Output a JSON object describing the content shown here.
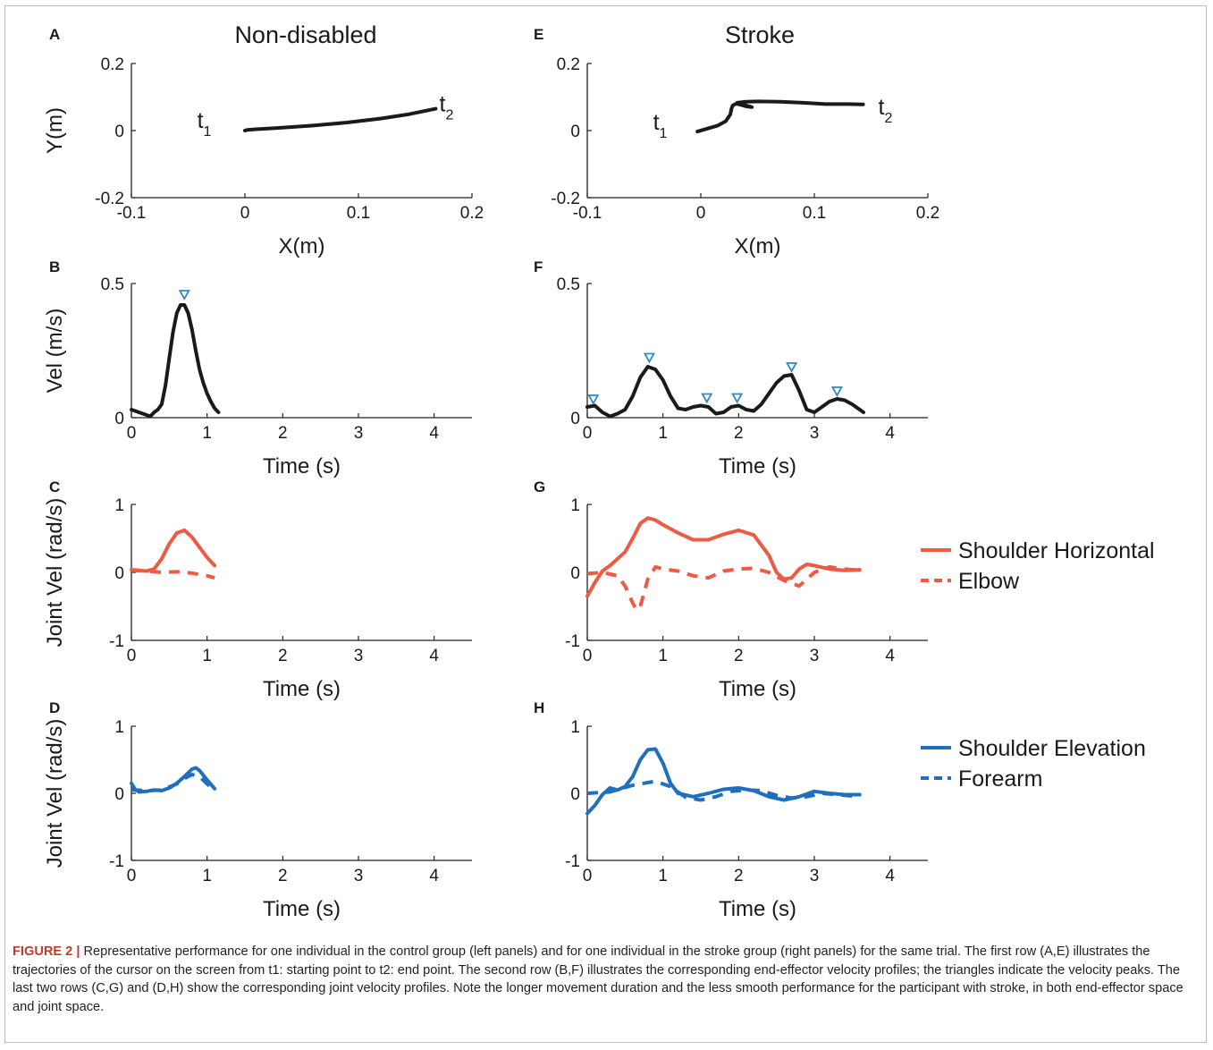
{
  "figure": {
    "column_titles": [
      "Non-disabled",
      "Stroke"
    ],
    "panel_labels": [
      "A",
      "B",
      "C",
      "D",
      "E",
      "F",
      "G",
      "H"
    ],
    "caption": {
      "label": "FIGURE 2 |",
      "text": "Representative performance for one individual in the control group (left panels) and for one individual in the stroke group (right panels) for the same trial. The first row (A,E) illustrates the trajectories of the cursor on the screen from t1: starting point to t2: end point. The second row (B,F) illustrates the corresponding end-effector velocity profiles; the triangles indicate the velocity peaks. The last two rows (C,G) and (D,H) show the corresponding joint velocity profiles. Note the longer movement duration and the less smooth performance for the participant with stroke, in both end-effector space and joint space."
    },
    "colors": {
      "black": "#1a1a1a",
      "red": "#ef5a44",
      "blue": "#1f6fc0",
      "peak": "#2f86c8"
    }
  },
  "chart_data": [
    {
      "panel": "A",
      "type": "line",
      "title": "Non-disabled",
      "xlabel": "X(m)",
      "ylabel": "Y(m)",
      "xlim": [
        -0.1,
        0.2
      ],
      "ylim": [
        -0.2,
        0.2
      ],
      "xticks": [
        -0.1,
        0,
        0.1,
        0.2
      ],
      "xtick_labels": [
        "-0.1",
        "0",
        "0.1",
        "0.2"
      ],
      "yticks": [
        -0.2,
        0,
        0.2
      ],
      "ytick_labels": [
        "-0.2",
        "0",
        "0.2"
      ],
      "annotations": [
        {
          "text": "t1",
          "x": -0.02,
          "y": 0.0
        },
        {
          "text": "t2",
          "x": 0.165,
          "y": 0.09
        }
      ],
      "series": [
        {
          "color": "black",
          "style": "solid",
          "x": [
            0,
            0.002,
            0.01,
            0.03,
            0.06,
            0.09,
            0.12,
            0.145,
            0.168
          ],
          "y": [
            0,
            0.002,
            0.004,
            0.008,
            0.015,
            0.024,
            0.036,
            0.049,
            0.065
          ]
        }
      ]
    },
    {
      "panel": "E",
      "type": "line",
      "title": "Stroke",
      "xlabel": "X(m)",
      "ylabel": "",
      "xlim": [
        -0.1,
        0.2
      ],
      "ylim": [
        -0.2,
        0.2
      ],
      "xticks": [
        -0.1,
        0,
        0.1,
        0.2
      ],
      "xtick_labels": [
        "-0.1",
        "0",
        "0.1",
        "0.2"
      ],
      "yticks": [
        -0.2,
        0,
        0.2
      ],
      "ytick_labels": [
        "-0.2",
        "0",
        "0.2"
      ],
      "annotations": [
        {
          "text": "t1",
          "x": -0.02,
          "y": -0.005
        },
        {
          "text": "t2",
          "x": 0.15,
          "y": 0.08
        }
      ],
      "series": [
        {
          "color": "black",
          "style": "solid",
          "x": [
            -0.003,
            0.005,
            0.015,
            0.022,
            0.026,
            0.027,
            0.028,
            0.031,
            0.035,
            0.04,
            0.045,
            0.032,
            0.04,
            0.05,
            0.07,
            0.09,
            0.11,
            0.13,
            0.143
          ],
          "y": [
            -0.003,
            0.005,
            0.015,
            0.028,
            0.048,
            0.065,
            0.075,
            0.08,
            0.077,
            0.072,
            0.07,
            0.083,
            0.086,
            0.087,
            0.086,
            0.083,
            0.079,
            0.079,
            0.078
          ]
        }
      ]
    },
    {
      "panel": "B",
      "type": "line",
      "title": "",
      "xlabel": "Time (s)",
      "ylabel": "Vel (m/s)",
      "xlim": [
        0,
        4.5
      ],
      "ylim": [
        0,
        0.5
      ],
      "xticks": [
        0,
        1,
        2,
        3,
        4
      ],
      "xtick_labels": [
        "0",
        "1",
        "2",
        "3",
        "4"
      ],
      "yticks": [
        0,
        0.5
      ],
      "ytick_labels": [
        "0",
        "0.5"
      ],
      "peaks": [
        {
          "x": 0.7,
          "y": 0.46
        }
      ],
      "series": [
        {
          "color": "black",
          "style": "solid",
          "x": [
            0,
            0.1,
            0.2,
            0.25,
            0.3,
            0.35,
            0.4,
            0.45,
            0.5,
            0.55,
            0.6,
            0.65,
            0.7,
            0.75,
            0.8,
            0.85,
            0.9,
            0.95,
            1.0,
            1.05,
            1.1,
            1.15
          ],
          "y": [
            0.03,
            0.02,
            0.01,
            0.005,
            0.02,
            0.03,
            0.05,
            0.12,
            0.22,
            0.32,
            0.39,
            0.42,
            0.42,
            0.39,
            0.33,
            0.25,
            0.18,
            0.13,
            0.09,
            0.06,
            0.035,
            0.02
          ]
        }
      ]
    },
    {
      "panel": "F",
      "type": "line",
      "title": "",
      "xlabel": "Time (s)",
      "ylabel": "",
      "xlim": [
        0,
        4.5
      ],
      "ylim": [
        0,
        0.5
      ],
      "xticks": [
        0,
        1,
        2,
        3,
        4
      ],
      "xtick_labels": [
        "0",
        "1",
        "2",
        "3",
        "4"
      ],
      "yticks": [
        0,
        0.5
      ],
      "ytick_labels": [
        "0",
        "0.5"
      ],
      "peaks": [
        {
          "x": 0.08,
          "y": 0.07
        },
        {
          "x": 0.82,
          "y": 0.225
        },
        {
          "x": 1.58,
          "y": 0.075
        },
        {
          "x": 1.98,
          "y": 0.075
        },
        {
          "x": 2.7,
          "y": 0.19
        },
        {
          "x": 3.3,
          "y": 0.1
        }
      ],
      "series": [
        {
          "color": "black",
          "style": "solid",
          "x": [
            0,
            0.1,
            0.2,
            0.3,
            0.4,
            0.5,
            0.6,
            0.7,
            0.8,
            0.9,
            1.0,
            1.1,
            1.2,
            1.3,
            1.4,
            1.5,
            1.6,
            1.7,
            1.8,
            1.9,
            2.0,
            2.1,
            2.2,
            2.3,
            2.4,
            2.5,
            2.6,
            2.7,
            2.8,
            2.9,
            3.0,
            3.1,
            3.2,
            3.3,
            3.4,
            3.5,
            3.6,
            3.65
          ],
          "y": [
            0.04,
            0.045,
            0.02,
            0.005,
            0.015,
            0.03,
            0.08,
            0.15,
            0.19,
            0.18,
            0.14,
            0.08,
            0.035,
            0.03,
            0.04,
            0.045,
            0.04,
            0.015,
            0.02,
            0.04,
            0.045,
            0.03,
            0.025,
            0.05,
            0.09,
            0.13,
            0.155,
            0.16,
            0.1,
            0.03,
            0.02,
            0.04,
            0.06,
            0.07,
            0.065,
            0.05,
            0.03,
            0.02
          ]
        }
      ]
    },
    {
      "panel": "C",
      "type": "line",
      "title": "",
      "xlabel": "Time (s)",
      "ylabel": "Joint Vel (rad/s)",
      "xlim": [
        0,
        4.5
      ],
      "ylim": [
        -1,
        1
      ],
      "xticks": [
        0,
        1,
        2,
        3,
        4
      ],
      "xtick_labels": [
        "0",
        "1",
        "2",
        "3",
        "4"
      ],
      "yticks": [
        -1,
        0,
        1
      ],
      "ytick_labels": [
        "-1",
        "0",
        "1"
      ],
      "series": [
        {
          "name": "Shoulder Horizontal",
          "color": "red",
          "style": "solid",
          "x": [
            0,
            0.1,
            0.2,
            0.3,
            0.4,
            0.5,
            0.6,
            0.7,
            0.8,
            0.9,
            1.0,
            1.1
          ],
          "y": [
            0.04,
            0.03,
            0.02,
            0.05,
            0.2,
            0.42,
            0.58,
            0.62,
            0.52,
            0.37,
            0.22,
            0.1
          ]
        },
        {
          "name": "Elbow",
          "color": "red",
          "style": "dash",
          "x": [
            0,
            0.2,
            0.4,
            0.6,
            0.8,
            1.0,
            1.1
          ],
          "y": [
            0.03,
            0.02,
            0.0,
            0.01,
            -0.01,
            -0.05,
            -0.08
          ]
        }
      ]
    },
    {
      "panel": "G",
      "type": "line",
      "title": "",
      "xlabel": "Time (s)",
      "ylabel": "",
      "xlim": [
        0,
        4.5
      ],
      "ylim": [
        -1,
        1
      ],
      "xticks": [
        0,
        1,
        2,
        3,
        4
      ],
      "xtick_labels": [
        "0",
        "1",
        "2",
        "3",
        "4"
      ],
      "yticks": [
        -1,
        0,
        1
      ],
      "ytick_labels": [
        "-1",
        "0",
        "1"
      ],
      "series": [
        {
          "name": "Shoulder Horizontal",
          "color": "red",
          "style": "solid",
          "x": [
            0,
            0.1,
            0.2,
            0.3,
            0.4,
            0.5,
            0.6,
            0.7,
            0.8,
            0.9,
            1.0,
            1.2,
            1.4,
            1.6,
            1.8,
            2.0,
            2.2,
            2.4,
            2.5,
            2.6,
            2.7,
            2.8,
            2.9,
            3.0,
            3.2,
            3.4,
            3.6
          ],
          "y": [
            -0.35,
            -0.15,
            0.02,
            0.1,
            0.2,
            0.3,
            0.5,
            0.72,
            0.8,
            0.77,
            0.7,
            0.58,
            0.48,
            0.48,
            0.56,
            0.62,
            0.55,
            0.25,
            0.0,
            -0.1,
            -0.08,
            0.05,
            0.12,
            0.1,
            0.05,
            0.03,
            0.04
          ]
        },
        {
          "name": "Elbow",
          "color": "red",
          "style": "dash",
          "x": [
            0,
            0.2,
            0.4,
            0.5,
            0.6,
            0.65,
            0.7,
            0.8,
            0.9,
            1.0,
            1.2,
            1.4,
            1.6,
            1.8,
            2.0,
            2.2,
            2.4,
            2.6,
            2.8,
            3.0,
            3.2,
            3.4,
            3.6
          ],
          "y": [
            -0.02,
            0.0,
            -0.05,
            -0.2,
            -0.45,
            -0.55,
            -0.5,
            -0.1,
            0.08,
            0.05,
            0.02,
            -0.05,
            -0.08,
            0.02,
            0.05,
            0.06,
            0.0,
            -0.12,
            -0.2,
            0.0,
            0.08,
            0.05,
            0.03
          ]
        }
      ]
    },
    {
      "panel": "D",
      "type": "line",
      "title": "",
      "xlabel": "Time (s)",
      "ylabel": "Joint Vel (rad/s)",
      "xlim": [
        0,
        4.5
      ],
      "ylim": [
        -1,
        1
      ],
      "xticks": [
        0,
        1,
        2,
        3,
        4
      ],
      "xtick_labels": [
        "0",
        "1",
        "2",
        "3",
        "4"
      ],
      "yticks": [
        -1,
        0,
        1
      ],
      "ytick_labels": [
        "-1",
        "0",
        "1"
      ],
      "series": [
        {
          "name": "Shoulder Elevation",
          "color": "blue",
          "style": "solid",
          "x": [
            0,
            0.05,
            0.1,
            0.2,
            0.3,
            0.4,
            0.5,
            0.6,
            0.7,
            0.8,
            0.85,
            0.9,
            1.0,
            1.1
          ],
          "y": [
            0.15,
            0.06,
            0.02,
            0.03,
            0.05,
            0.04,
            0.08,
            0.15,
            0.25,
            0.36,
            0.38,
            0.34,
            0.2,
            0.07
          ]
        },
        {
          "name": "Forearm",
          "color": "blue",
          "style": "dash",
          "x": [
            0,
            0.2,
            0.4,
            0.6,
            0.7,
            0.8,
            0.9,
            1.0,
            1.1
          ],
          "y": [
            0.05,
            0.04,
            0.05,
            0.14,
            0.22,
            0.28,
            0.25,
            0.14,
            0.05
          ]
        }
      ]
    },
    {
      "panel": "H",
      "type": "line",
      "title": "",
      "xlabel": "Time (s)",
      "ylabel": "",
      "xlim": [
        0,
        4.5
      ],
      "ylim": [
        -1,
        1
      ],
      "xticks": [
        0,
        1,
        2,
        3,
        4
      ],
      "xtick_labels": [
        "0",
        "1",
        "2",
        "3",
        "4"
      ],
      "yticks": [
        -1,
        0,
        1
      ],
      "ytick_labels": [
        "-1",
        "0",
        "1"
      ],
      "series": [
        {
          "name": "Shoulder Elevation",
          "color": "blue",
          "style": "solid",
          "x": [
            0,
            0.1,
            0.2,
            0.3,
            0.4,
            0.5,
            0.6,
            0.7,
            0.8,
            0.9,
            1.0,
            1.1,
            1.2,
            1.4,
            1.6,
            1.8,
            2.0,
            2.2,
            2.4,
            2.6,
            2.8,
            3.0,
            3.2,
            3.4,
            3.6
          ],
          "y": [
            -0.3,
            -0.18,
            -0.02,
            0.08,
            0.05,
            0.1,
            0.25,
            0.5,
            0.65,
            0.66,
            0.45,
            0.15,
            0.0,
            -0.05,
            0.0,
            0.06,
            0.08,
            0.04,
            -0.05,
            -0.1,
            -0.05,
            0.03,
            0.0,
            -0.02,
            -0.02
          ]
        },
        {
          "name": "Forearm",
          "color": "blue",
          "style": "dash",
          "x": [
            0,
            0.3,
            0.6,
            0.9,
            1.1,
            1.3,
            1.5,
            1.7,
            1.9,
            2.1,
            2.3,
            2.5,
            2.7,
            2.9,
            3.1,
            3.3,
            3.6
          ],
          "y": [
            0.0,
            0.02,
            0.12,
            0.18,
            0.1,
            -0.06,
            -0.1,
            -0.05,
            0.03,
            0.05,
            0.04,
            -0.03,
            -0.07,
            -0.05,
            0.0,
            -0.02,
            -0.05
          ]
        }
      ]
    }
  ],
  "legends": [
    {
      "row": "C",
      "items": [
        {
          "name": "Shoulder Horizontal",
          "color": "red",
          "style": "solid"
        },
        {
          "name": "Elbow",
          "color": "red",
          "style": "dash"
        }
      ]
    },
    {
      "row": "D",
      "items": [
        {
          "name": "Shoulder Elevation",
          "color": "blue",
          "style": "solid"
        },
        {
          "name": "Forearm",
          "color": "blue",
          "style": "dash"
        }
      ]
    }
  ]
}
